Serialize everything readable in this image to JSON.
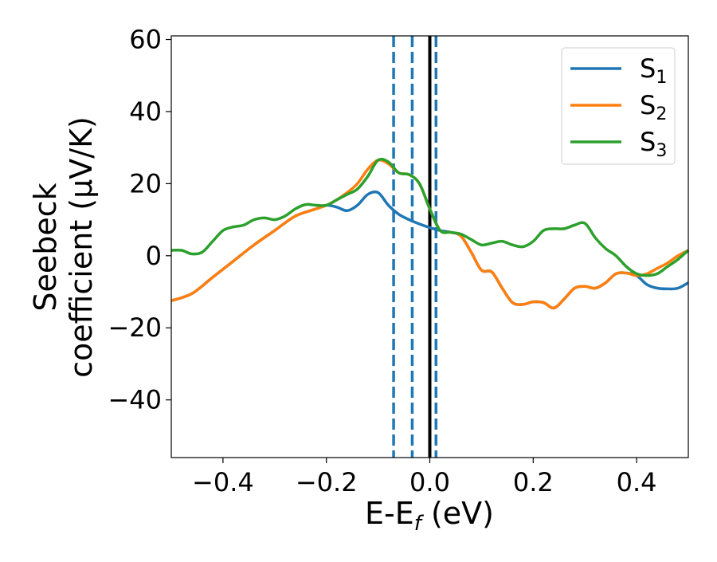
{
  "chart_data": {
    "type": "line",
    "title": "",
    "xlabel": "E-E_f (eV)",
    "xlabel_parts": {
      "main": "E-E",
      "sub": "f",
      "suffix": " (eV)"
    },
    "ylabel_line1": "Seebeck",
    "ylabel_line2": "coefficient  (μV/K)",
    "xlim": [
      -0.5,
      0.5
    ],
    "ylim": [
      -56,
      61
    ],
    "xticks": [
      -0.4,
      -0.2,
      0.0,
      0.2,
      0.4
    ],
    "xtick_labels": [
      "−0.4",
      "−0.2",
      "0.0",
      "0.2",
      "0.4"
    ],
    "yticks": [
      -40,
      -20,
      0,
      20,
      40,
      60
    ],
    "ytick_labels": [
      "−40",
      "−20",
      "0",
      "20",
      "40",
      "60"
    ],
    "grid": false,
    "legend_position": "top-right",
    "series": [
      {
        "name": "S1",
        "label_main": "S",
        "label_sub": "1",
        "color": "#1f77b4",
        "x": [
          -0.5,
          -0.46,
          -0.42,
          -0.38,
          -0.34,
          -0.3,
          -0.26,
          -0.22,
          -0.2,
          -0.18,
          -0.16,
          -0.14,
          -0.12,
          -0.1,
          -0.08,
          -0.06,
          -0.04,
          -0.02,
          0.0,
          0.02,
          0.04,
          0.06,
          0.08,
          0.1,
          0.12,
          0.14,
          0.16,
          0.18,
          0.2,
          0.22,
          0.24,
          0.26,
          0.28,
          0.3,
          0.32,
          0.34,
          0.36,
          0.38,
          0.4,
          0.42,
          0.44,
          0.46,
          0.48,
          0.5
        ],
        "y": [
          -12.5,
          -10.5,
          -6,
          -1.5,
          3,
          7,
          11,
          13,
          14,
          13.5,
          12.5,
          14,
          17,
          17.5,
          14,
          11.5,
          10,
          8.8,
          7.8,
          7,
          6.5,
          5.5,
          1,
          -4,
          -4.5,
          -9,
          -13,
          -13.5,
          -12.8,
          -13,
          -14.5,
          -12,
          -9,
          -8.5,
          -9,
          -7.5,
          -5,
          -4.8,
          -5.5,
          -8,
          -9,
          -9.2,
          -9,
          -7.5
        ]
      },
      {
        "name": "S2",
        "label_main": "S",
        "label_sub": "2",
        "color": "#ff7f0e",
        "x": [
          -0.5,
          -0.46,
          -0.42,
          -0.38,
          -0.34,
          -0.3,
          -0.26,
          -0.22,
          -0.2,
          -0.18,
          -0.16,
          -0.14,
          -0.12,
          -0.1,
          -0.08,
          -0.06,
          -0.04,
          -0.02,
          0.0,
          0.02,
          0.04,
          0.06,
          0.08,
          0.1,
          0.12,
          0.14,
          0.16,
          0.18,
          0.2,
          0.22,
          0.24,
          0.26,
          0.28,
          0.3,
          0.32,
          0.34,
          0.36,
          0.38,
          0.4,
          0.42,
          0.44,
          0.46,
          0.48,
          0.5
        ],
        "y": [
          -12.5,
          -10.5,
          -6,
          -1.5,
          3,
          7,
          11,
          13,
          14,
          15.5,
          17.5,
          20,
          24,
          26.5,
          25.5,
          23,
          22.5,
          20,
          13,
          7,
          6.5,
          5.5,
          1,
          -4,
          -4.5,
          -9,
          -13,
          -13.5,
          -12.8,
          -13,
          -14.5,
          -12,
          -9,
          -8.5,
          -9,
          -7.5,
          -5,
          -4.8,
          -5.5,
          -5,
          -3.5,
          -2,
          0,
          1.5
        ]
      },
      {
        "name": "S3",
        "label_main": "S",
        "label_sub": "3",
        "color": "#2ca02c",
        "x": [
          -0.5,
          -0.48,
          -0.46,
          -0.44,
          -0.42,
          -0.4,
          -0.38,
          -0.36,
          -0.34,
          -0.32,
          -0.3,
          -0.28,
          -0.26,
          -0.24,
          -0.22,
          -0.2,
          -0.18,
          -0.16,
          -0.14,
          -0.12,
          -0.1,
          -0.08,
          -0.06,
          -0.04,
          -0.02,
          0.0,
          0.02,
          0.04,
          0.06,
          0.08,
          0.1,
          0.12,
          0.14,
          0.16,
          0.18,
          0.2,
          0.22,
          0.24,
          0.26,
          0.28,
          0.3,
          0.32,
          0.34,
          0.36,
          0.38,
          0.4,
          0.42,
          0.44,
          0.46,
          0.48,
          0.5
        ],
        "y": [
          1.5,
          1.5,
          0.5,
          1,
          4,
          7,
          8,
          8.5,
          10,
          10.5,
          10,
          11,
          13,
          14.2,
          14,
          14,
          15.5,
          17,
          18.5,
          22,
          26.5,
          26,
          23,
          22.5,
          20,
          13,
          7,
          6.5,
          6,
          4.5,
          3,
          3.5,
          4,
          3,
          2.5,
          4,
          7,
          7.5,
          7.5,
          8.5,
          9,
          5,
          2,
          0,
          -3,
          -5,
          -5.5,
          -5,
          -3,
          -1,
          1.5
        ]
      }
    ],
    "vlines": [
      {
        "x": -0.07,
        "style": "dashed",
        "color": "#1f77b4"
      },
      {
        "x": -0.034,
        "style": "dashed",
        "color": "#1f77b4"
      },
      {
        "x": 0.0,
        "style": "solid",
        "color": "#000000"
      },
      {
        "x": 0.012,
        "style": "dashed",
        "color": "#1f77b4"
      }
    ]
  }
}
